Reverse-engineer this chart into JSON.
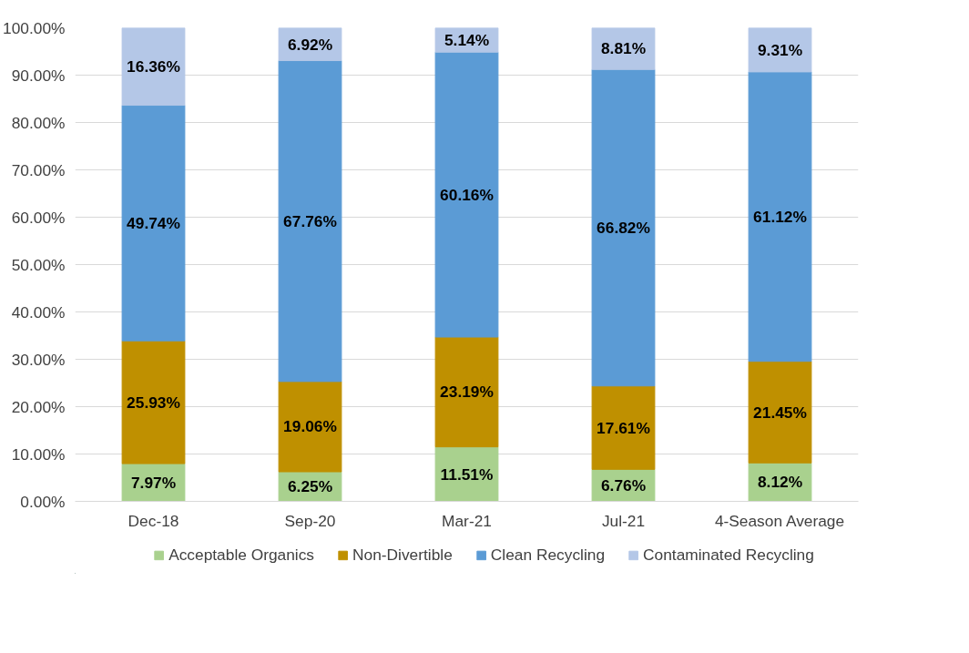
{
  "chart_data": {
    "type": "bar",
    "stacked": true,
    "categories": [
      "Dec-18",
      "Sep-20",
      "Mar-21",
      "Jul-21",
      "4-Season Average"
    ],
    "series": [
      {
        "name": "Acceptable Organics",
        "color": "#a9d18e",
        "values": [
          7.97,
          6.25,
          11.51,
          6.76,
          8.12
        ],
        "value_labels": [
          "7.97%",
          "6.25%",
          "11.51%",
          "6.76%",
          "8.12%"
        ]
      },
      {
        "name": "Non-Divertible",
        "color": "#bf9000",
        "values": [
          25.93,
          19.06,
          23.19,
          17.61,
          21.45
        ],
        "value_labels": [
          "25.93%",
          "19.06%",
          "23.19%",
          "17.61%",
          "21.45%"
        ]
      },
      {
        "name": "Clean Recycling",
        "color": "#5b9bd5",
        "values": [
          49.74,
          67.76,
          60.16,
          66.82,
          61.12
        ],
        "value_labels": [
          "49.74%",
          "67.76%",
          "60.16%",
          "66.82%",
          "61.12%"
        ]
      },
      {
        "name": "Contaminated Recycling",
        "color": "#b4c7e7",
        "values": [
          16.36,
          6.92,
          5.14,
          8.81,
          9.31
        ],
        "value_labels": [
          "16.36%",
          "6.92%",
          "5.14%",
          "8.81%",
          "9.31%"
        ]
      }
    ],
    "ylim": [
      0,
      100
    ],
    "yticks": [
      {
        "value": 0,
        "label": "0.00%"
      },
      {
        "value": 10,
        "label": "10.00%"
      },
      {
        "value": 20,
        "label": "20.00%"
      },
      {
        "value": 30,
        "label": "30.00%"
      },
      {
        "value": 40,
        "label": "40.00%"
      },
      {
        "value": 50,
        "label": "50.00%"
      },
      {
        "value": 60,
        "label": "60.00%"
      },
      {
        "value": 70,
        "label": "70.00%"
      },
      {
        "value": 80,
        "label": "80.00%"
      },
      {
        "value": 90,
        "label": "90.00%"
      },
      {
        "value": 100,
        "label": "100.00%"
      }
    ],
    "grid": "y",
    "legend": "bottom"
  }
}
